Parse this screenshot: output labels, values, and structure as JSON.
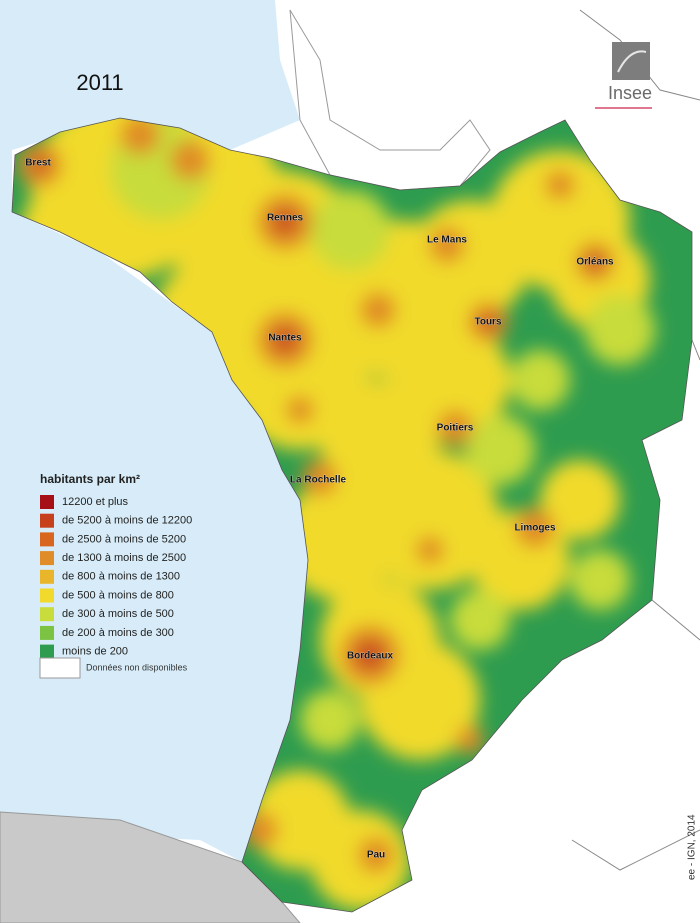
{
  "map": {
    "year": "2011",
    "logo": "Insee",
    "legend": {
      "title": "habitants par km²",
      "items": [
        {
          "label": "12200 et plus",
          "color": "#a50f15"
        },
        {
          "label": "de 5200 à moins de 12200",
          "color": "#c5401b"
        },
        {
          "label": "de 2500 à moins de 5200",
          "color": "#d9661f"
        },
        {
          "label": "de 1300 à moins de 2500",
          "color": "#e08c28"
        },
        {
          "label": "de 800 à moins de 1300",
          "color": "#e9b62b"
        },
        {
          "label": "de 500 à moins de 800",
          "color": "#f1da2c"
        },
        {
          "label": "de 300 à moins de 500",
          "color": "#c8dc3b"
        },
        {
          "label": "de 200 à moins de 300",
          "color": "#7cc243"
        },
        {
          "label": "moins de 200",
          "color": "#2e9c4f"
        }
      ],
      "no_data": "Données non disponibles"
    },
    "cities": [
      "Brest",
      "Rennes",
      "Le Mans",
      "Orléans",
      "Nantes",
      "Tours",
      "Poitiers",
      "La Rochelle",
      "Limoges",
      "Bordeaux",
      "Pau"
    ],
    "source": "ee - IGN, 2014"
  }
}
